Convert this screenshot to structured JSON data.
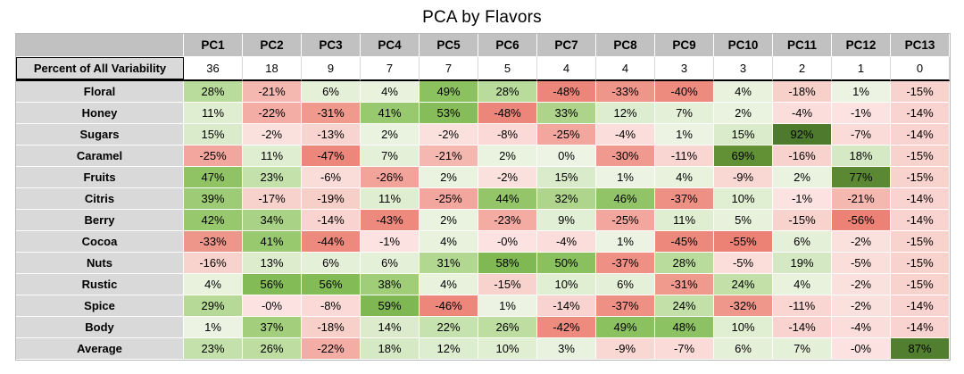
{
  "title": "PCA by Flavors",
  "chart_data": {
    "type": "heatmap",
    "title": "PCA by Flavors",
    "columns": [
      "PC1",
      "PC2",
      "PC3",
      "PC4",
      "PC5",
      "PC6",
      "PC7",
      "PC8",
      "PC9",
      "PC10",
      "PC11",
      "PC12",
      "PC13"
    ],
    "variability_row": {
      "label": "Percent of All Variability",
      "values": [
        "36",
        "18",
        "9",
        "7",
        "7",
        "5",
        "4",
        "4",
        "3",
        "3",
        "2",
        "1",
        "0"
      ]
    },
    "rows": [
      {
        "label": "Floral",
        "values": [
          "28%",
          "-21%",
          "6%",
          "4%",
          "49%",
          "28%",
          "-48%",
          "-33%",
          "-40%",
          "4%",
          "-18%",
          "1%",
          "-15%"
        ]
      },
      {
        "label": "Honey",
        "values": [
          "11%",
          "-22%",
          "-31%",
          "41%",
          "53%",
          "-48%",
          "33%",
          "12%",
          "7%",
          "2%",
          "-4%",
          "-1%",
          "-14%"
        ]
      },
      {
        "label": "Sugars",
        "values": [
          "15%",
          "-2%",
          "-13%",
          "2%",
          "-2%",
          "-8%",
          "-25%",
          "-4%",
          "1%",
          "15%",
          "92%",
          "-7%",
          "-14%"
        ]
      },
      {
        "label": "Caramel",
        "values": [
          "-25%",
          "11%",
          "-47%",
          "7%",
          "-21%",
          "2%",
          "0%",
          "-30%",
          "-11%",
          "69%",
          "-16%",
          "18%",
          "-15%"
        ]
      },
      {
        "label": "Fruits",
        "values": [
          "47%",
          "23%",
          "-6%",
          "-26%",
          "2%",
          "-2%",
          "15%",
          "1%",
          "4%",
          "-9%",
          "2%",
          "77%",
          "-15%"
        ]
      },
      {
        "label": "Citris",
        "values": [
          "39%",
          "-17%",
          "-19%",
          "11%",
          "-25%",
          "44%",
          "32%",
          "46%",
          "-37%",
          "10%",
          "-1%",
          "-21%",
          "-14%"
        ]
      },
      {
        "label": "Berry",
        "values": [
          "42%",
          "34%",
          "-14%",
          "-43%",
          "2%",
          "-23%",
          "9%",
          "-25%",
          "11%",
          "5%",
          "-15%",
          "-56%",
          "-14%"
        ]
      },
      {
        "label": "Cocoa",
        "values": [
          "-33%",
          "41%",
          "-44%",
          "-1%",
          "4%",
          "-0%",
          "-4%",
          "1%",
          "-45%",
          "-55%",
          "6%",
          "-2%",
          "-15%"
        ]
      },
      {
        "label": "Nuts",
        "values": [
          "-16%",
          "13%",
          "6%",
          "6%",
          "31%",
          "58%",
          "50%",
          "-37%",
          "28%",
          "-5%",
          "19%",
          "-5%",
          "-15%"
        ]
      },
      {
        "label": "Rustic",
        "values": [
          "4%",
          "56%",
          "56%",
          "38%",
          "4%",
          "-15%",
          "10%",
          "6%",
          "-31%",
          "24%",
          "4%",
          "-2%",
          "-15%"
        ]
      },
      {
        "label": "Spice",
        "values": [
          "29%",
          "-0%",
          "-8%",
          "59%",
          "-46%",
          "1%",
          "-14%",
          "-37%",
          "24%",
          "-32%",
          "-11%",
          "-2%",
          "-14%"
        ]
      },
      {
        "label": "Body",
        "values": [
          "1%",
          "37%",
          "-18%",
          "14%",
          "22%",
          "26%",
          "-42%",
          "49%",
          "48%",
          "10%",
          "-14%",
          "-4%",
          "-14%"
        ]
      },
      {
        "label": "Average",
        "values": [
          "23%",
          "26%",
          "-22%",
          "18%",
          "12%",
          "10%",
          "3%",
          "-9%",
          "-7%",
          "6%",
          "7%",
          "-0%",
          "87%"
        ]
      }
    ],
    "colors": {
      "header_bg": "#c1c1c1",
      "label_bg": "#d9d9d9",
      "positive_anchors": [
        [
          0,
          "#edf4e4"
        ],
        [
          10,
          "#e0eed2"
        ],
        [
          19,
          "#d4e8c3"
        ],
        [
          22,
          "#c6e2ae"
        ],
        [
          30,
          "#b4d894"
        ],
        [
          40,
          "#9bca71"
        ],
        [
          50,
          "#8ac05e"
        ],
        [
          60,
          "#7eb751"
        ],
        [
          68,
          "#639134"
        ],
        [
          92,
          "#4e7a2e"
        ]
      ],
      "negative_anchors": [
        [
          0,
          "#fce3e1"
        ],
        [
          10,
          "#f9d7d3"
        ],
        [
          19,
          "#f7cfc9"
        ],
        [
          22,
          "#f4ada5"
        ],
        [
          30,
          "#f09a8f"
        ],
        [
          40,
          "#ee8b7f"
        ],
        [
          56,
          "#ec8175"
        ]
      ]
    }
  }
}
